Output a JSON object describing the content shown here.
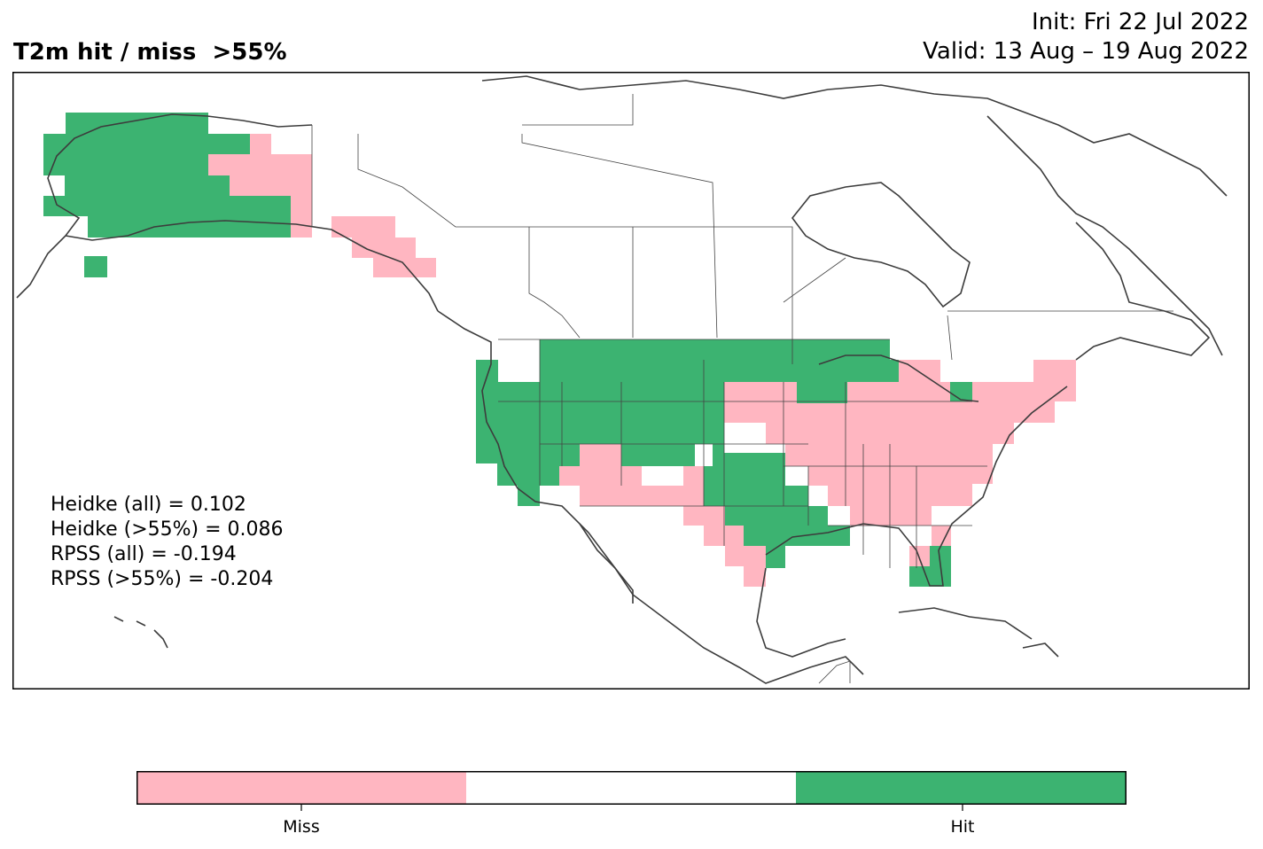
{
  "header": {
    "title": "T2m hit / miss  >55%",
    "init": "Init: Fri 22 Jul 2022",
    "valid": "Valid: 13 Aug – 19 Aug 2022"
  },
  "stats": [
    "Heidke (all) = 0.102",
    "Heidke (>55%) = 0.086",
    "RPSS (all) = -0.194",
    "RPSS (>55%) = -0.204"
  ],
  "colors": {
    "miss": "#ffb6c1",
    "neutral": "#ffffff",
    "hit": "#3cb371",
    "coastline": "#3c3c3c",
    "frame": "#000000"
  },
  "legend": {
    "miss_label": "Miss",
    "hit_label": "Hit"
  }
}
